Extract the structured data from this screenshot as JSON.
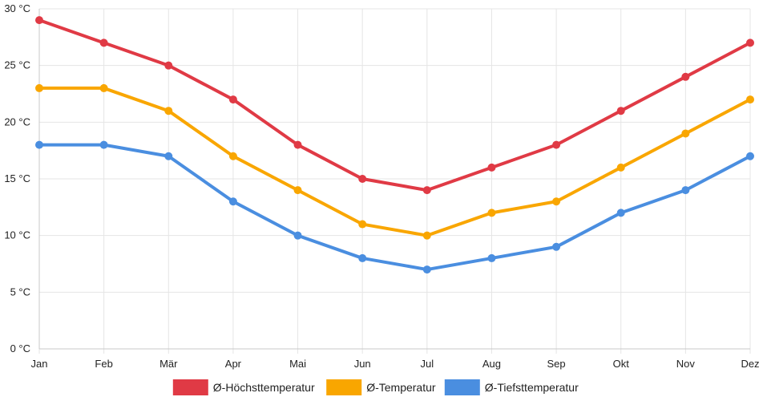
{
  "chart_data": {
    "type": "line",
    "categories": [
      "Jan",
      "Feb",
      "Mär",
      "Apr",
      "Mai",
      "Jun",
      "Jul",
      "Aug",
      "Sep",
      "Okt",
      "Nov",
      "Dez"
    ],
    "y_unit": "°C",
    "ylim": [
      0,
      30
    ],
    "y_ticks": [
      0,
      5,
      10,
      15,
      20,
      25,
      30
    ],
    "y_tick_labels": [
      "0 °C",
      "5 °C",
      "10 °C",
      "15 °C",
      "20 °C",
      "25 °C",
      "30 °C"
    ],
    "grid": true,
    "legend_position": "bottom",
    "series": [
      {
        "name": "Ø-Höchsttemperatur",
        "color": "#e03a45",
        "values": [
          29,
          27,
          25,
          22,
          18,
          15,
          14,
          16,
          18,
          21,
          24,
          27
        ]
      },
      {
        "name": "Ø-Temperatur",
        "color": "#f9a600",
        "values": [
          23,
          23,
          21,
          17,
          14,
          11,
          10,
          12,
          13,
          16,
          19,
          22
        ]
      },
      {
        "name": "Ø-Tiefsttemperatur",
        "color": "#4a8ee0",
        "values": [
          18,
          18,
          17,
          13,
          10,
          8,
          7,
          8,
          9,
          12,
          14,
          17
        ]
      }
    ]
  }
}
